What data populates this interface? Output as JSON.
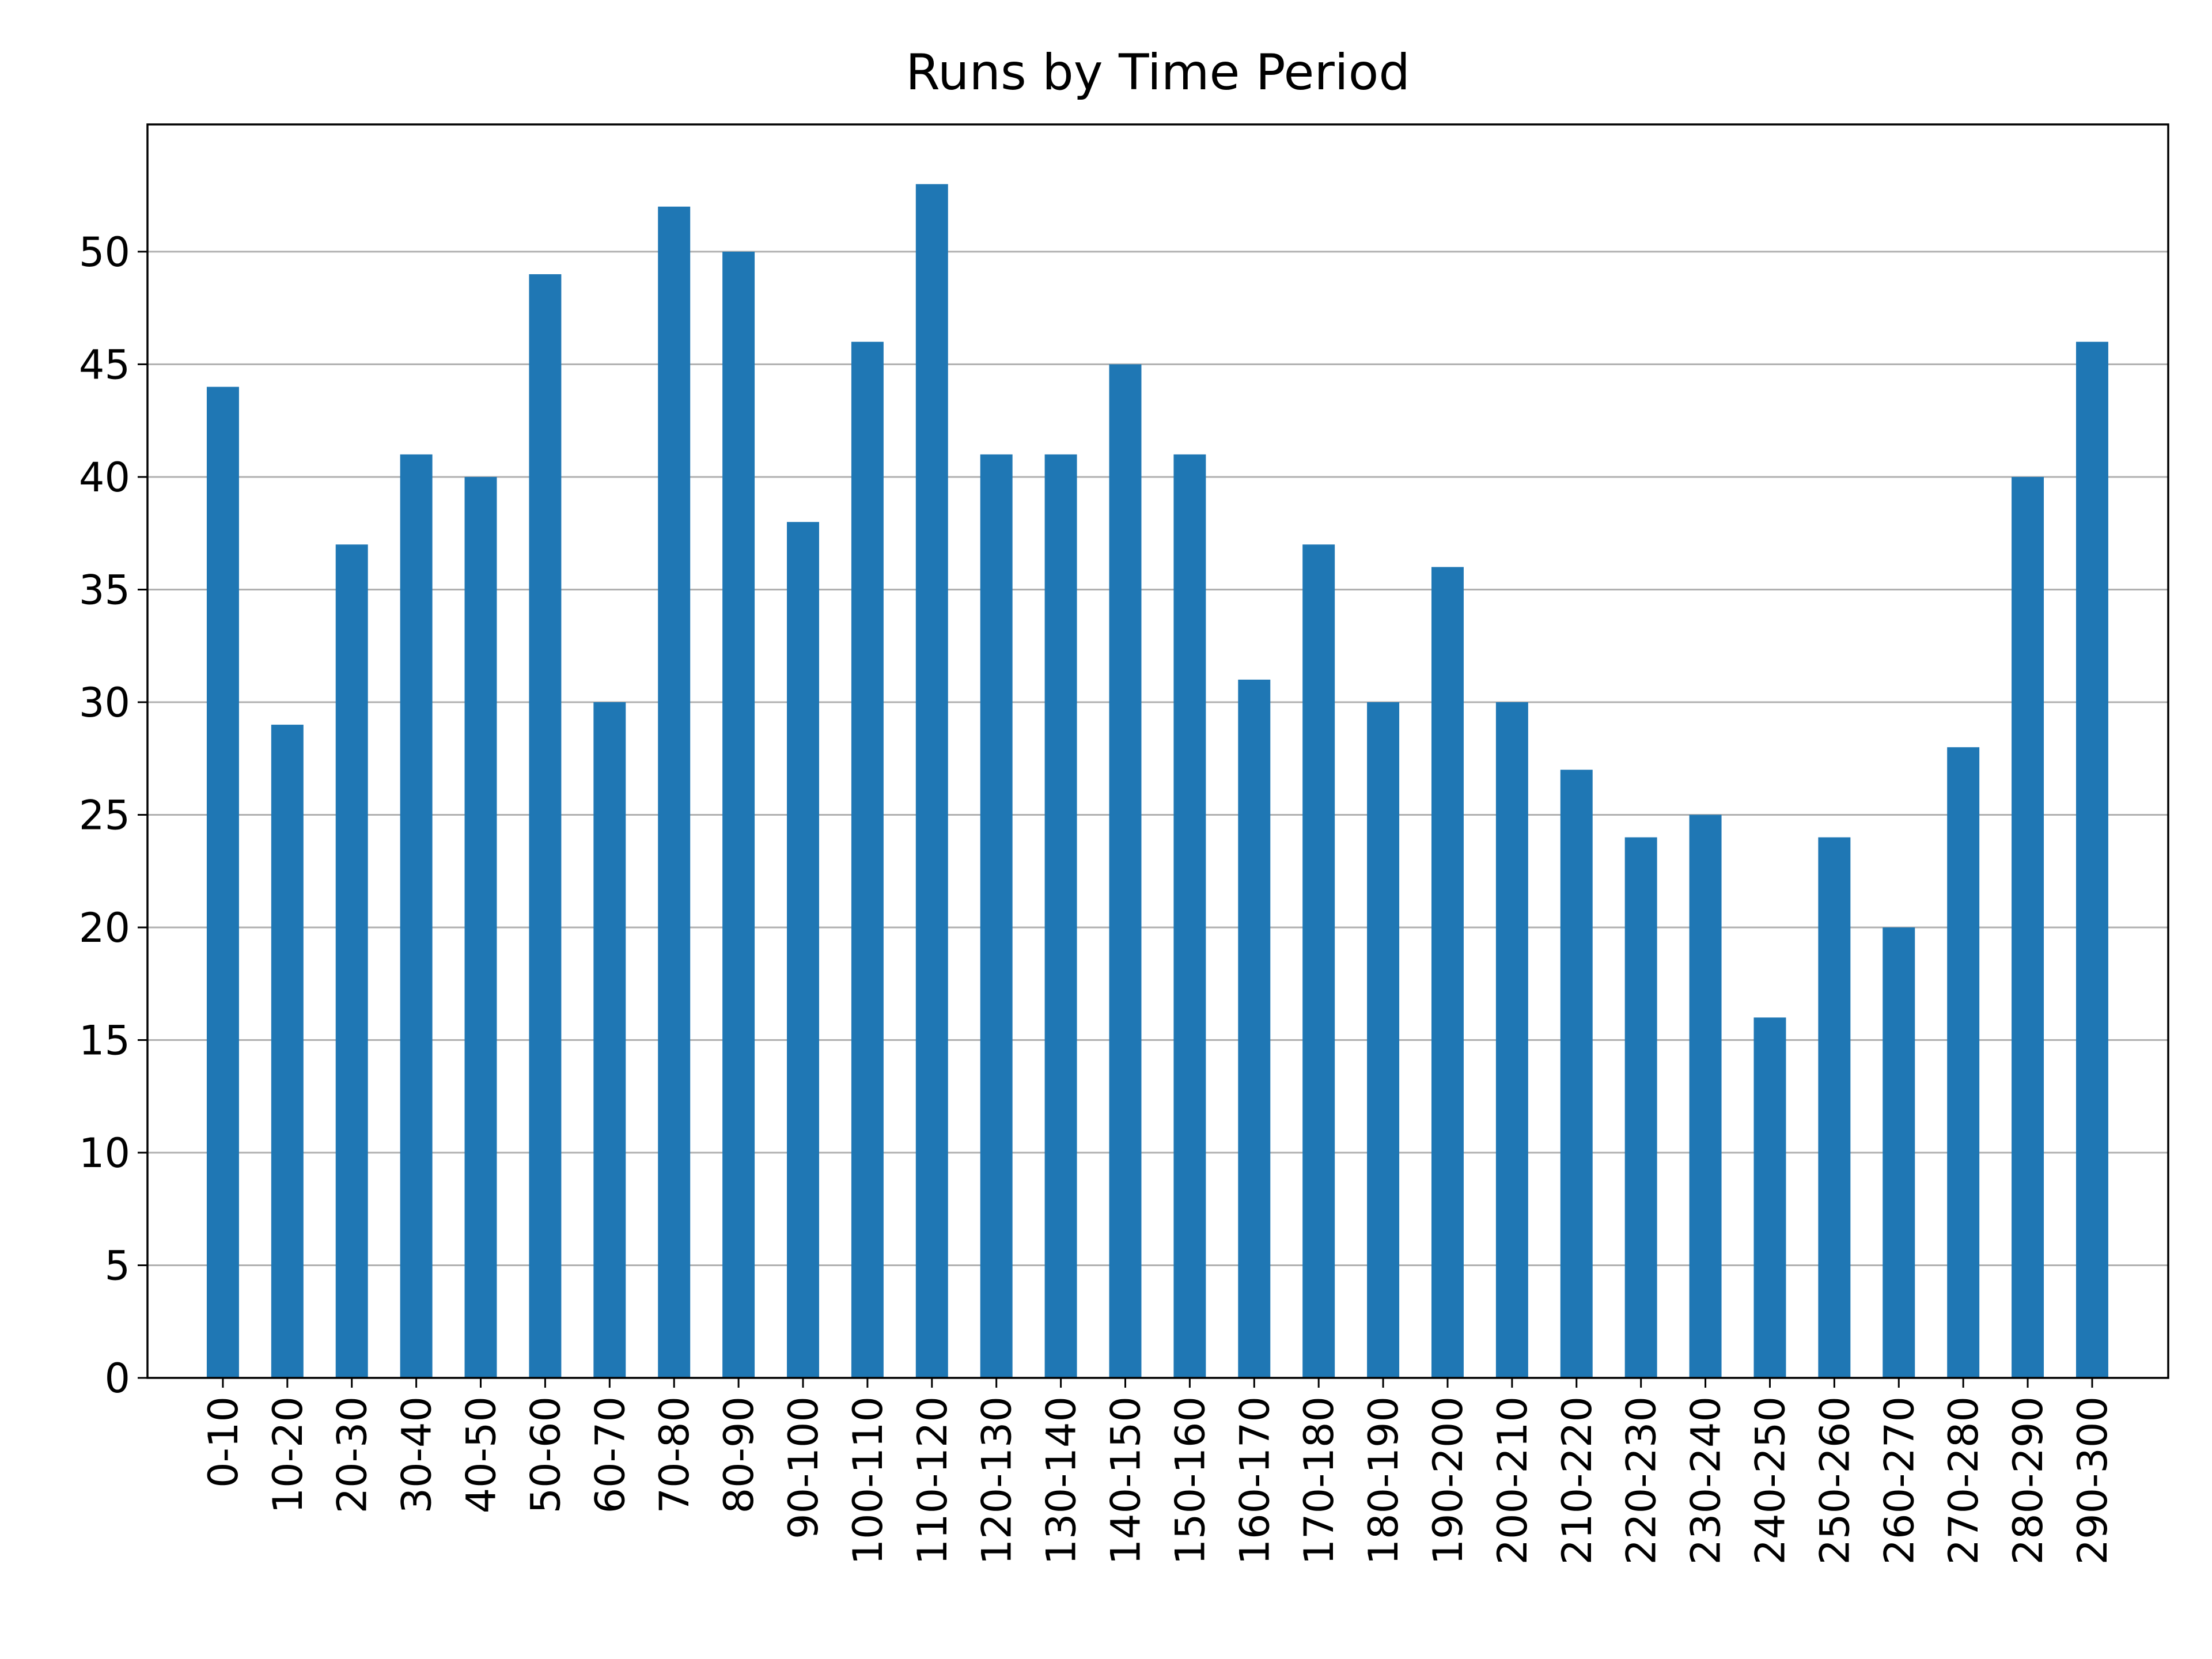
{
  "chart_data": {
    "type": "bar",
    "title": "Runs by Time Period",
    "xlabel": "",
    "ylabel": "",
    "categories": [
      "0-10",
      "10-20",
      "20-30",
      "30-40",
      "40-50",
      "50-60",
      "60-70",
      "70-80",
      "80-90",
      "90-100",
      "100-110",
      "110-120",
      "120-130",
      "130-140",
      "140-150",
      "150-160",
      "160-170",
      "170-180",
      "180-190",
      "190-200",
      "200-210",
      "210-220",
      "220-230",
      "230-240",
      "240-250",
      "250-260",
      "260-270",
      "270-280",
      "280-290",
      "290-300"
    ],
    "values": [
      44,
      29,
      37,
      41,
      40,
      49,
      30,
      52,
      50,
      38,
      46,
      53,
      41,
      41,
      45,
      41,
      31,
      37,
      30,
      36,
      30,
      27,
      24,
      25,
      16,
      24,
      20,
      28,
      40,
      46
    ],
    "ylim": [
      0,
      55.65
    ],
    "yticks": [
      0,
      5,
      10,
      15,
      20,
      25,
      30,
      35,
      40,
      45,
      50
    ],
    "grid": "y",
    "legend": "none",
    "bar_color": "#1f77b4",
    "grid_color": "#b0b0b0"
  }
}
